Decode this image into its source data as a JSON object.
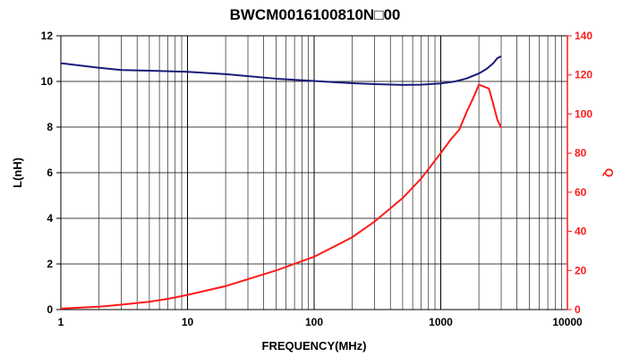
{
  "chart_data": {
    "type": "line",
    "title": "BWCM0016100810N□00",
    "xlabel": "FREQUENCY(MHz)",
    "ylabel_left": "L(nH)",
    "ylabel_right": "Q",
    "x_scale": "log",
    "xlim": [
      1,
      10000
    ],
    "ylim_left": [
      0,
      12
    ],
    "ylim_right": [
      0,
      140
    ],
    "x_ticks": [
      "1",
      "10",
      "100",
      "1000",
      "10000"
    ],
    "y_ticks_left": [
      "0",
      "2",
      "4",
      "6",
      "8",
      "10",
      "12"
    ],
    "y_ticks_right": [
      "0",
      "20",
      "40",
      "60",
      "80",
      "100",
      "120",
      "140"
    ],
    "grid": true,
    "colors": {
      "L": "#1a1a7a",
      "Q": "#ff1a1a",
      "grid": "#000000"
    },
    "series": [
      {
        "axis": "left",
        "color": "#1a1a7a",
        "x": [
          1,
          2,
          3,
          5,
          10,
          20,
          50,
          100,
          200,
          300,
          500,
          700,
          1000,
          1300,
          1600,
          2000,
          2300,
          2600,
          2800,
          3000
        ],
        "y": [
          10.8,
          10.6,
          10.5,
          10.47,
          10.42,
          10.32,
          10.12,
          10.02,
          9.92,
          9.88,
          9.85,
          9.86,
          9.91,
          10.0,
          10.13,
          10.35,
          10.55,
          10.8,
          11.02,
          11.1
        ]
      },
      {
        "axis": "right",
        "color": "#ff1a1a",
        "x": [
          1,
          2,
          3,
          5,
          7,
          10,
          20,
          50,
          100,
          200,
          300,
          500,
          700,
          1000,
          1200,
          1400,
          1600,
          1800,
          2000,
          2200,
          2400,
          2600,
          2800,
          3000
        ],
        "y": [
          0.5,
          1.5,
          2.5,
          4,
          5.5,
          7.5,
          12,
          20,
          27,
          37,
          45,
          57,
          67,
          80,
          87,
          92,
          101,
          108,
          115,
          114,
          113,
          105,
          97,
          93
        ]
      }
    ]
  }
}
